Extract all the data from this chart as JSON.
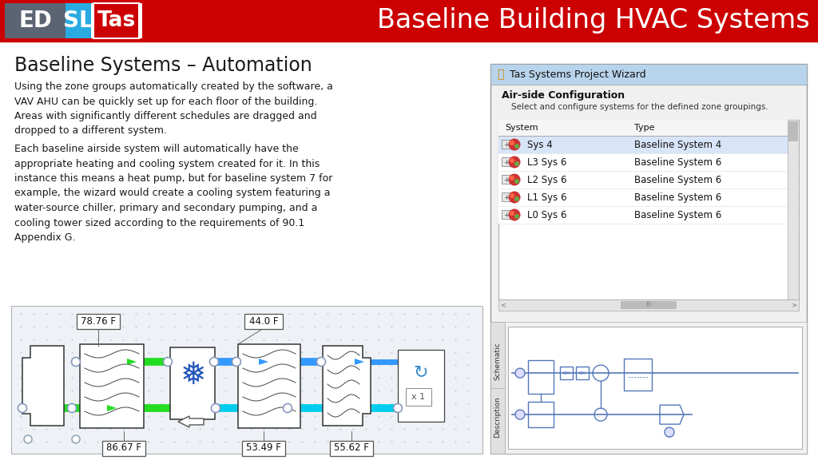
{
  "title": "Baseline Building HVAC Systems",
  "slide_title": "Baseline Systems – Automation",
  "body_text_1": "Using the zone groups automatically created by the software, a\nVAV AHU can be quickly set up for each floor of the building.\nAreas with significantly different schedules are dragged and\ndropped to a different system.",
  "body_text_2": "Each baseline airside system will automatically have the\nappropriate heating and cooling system created for it. In this\ninstance this means a heat pump, but for baseline system 7 for\nexample, the wizard would create a cooling system featuring a\nwater-source chiller, primary and secondary pumping, and a\ncooling tower sized according to the requirements of 90.1\nAppendix G.",
  "header_bg": "#CC0000",
  "header_text_color": "#FFFFFF",
  "logo_bg_gray": "#5A6472",
  "logo_bg_blue": "#29ABE2",
  "logo_bg_red_box": "#CC0000",
  "slide_bg": "#FFFFFF",
  "temps": {
    "top_left": "78.76 F",
    "top_mid": "44.0 F",
    "bot_left": "86.67 F",
    "bot_mid": "53.49 F",
    "bot_right": "55.62 F"
  },
  "wizard_title": "Tas Systems Project Wizard",
  "wizard_section": "Air-side Configuration",
  "wizard_desc": "Select and configure systems for the defined zone groupings.",
  "wizard_col1": "System",
  "wizard_col2": "Type",
  "wizard_rows": [
    [
      "Sys 4",
      "Baseline System 4"
    ],
    [
      "L3 Sys 6",
      "Baseline System 6"
    ],
    [
      "L2 Sys 6",
      "Baseline System 6"
    ],
    [
      "L1 Sys 6",
      "Baseline System 6"
    ],
    [
      "L0 Sys 6",
      "Baseline System 6"
    ]
  ],
  "green": "#22DD22",
  "blue_pipe": "#3399FF",
  "cyan_pipe": "#00CCEE",
  "diagram_bg": "#EEF2F6",
  "grid_dot": "#C8D0DA",
  "wizard_titlebar": "#B8D4EC",
  "wizard_bg": "#F2F2F2",
  "schematic_blue": "#5577BB"
}
